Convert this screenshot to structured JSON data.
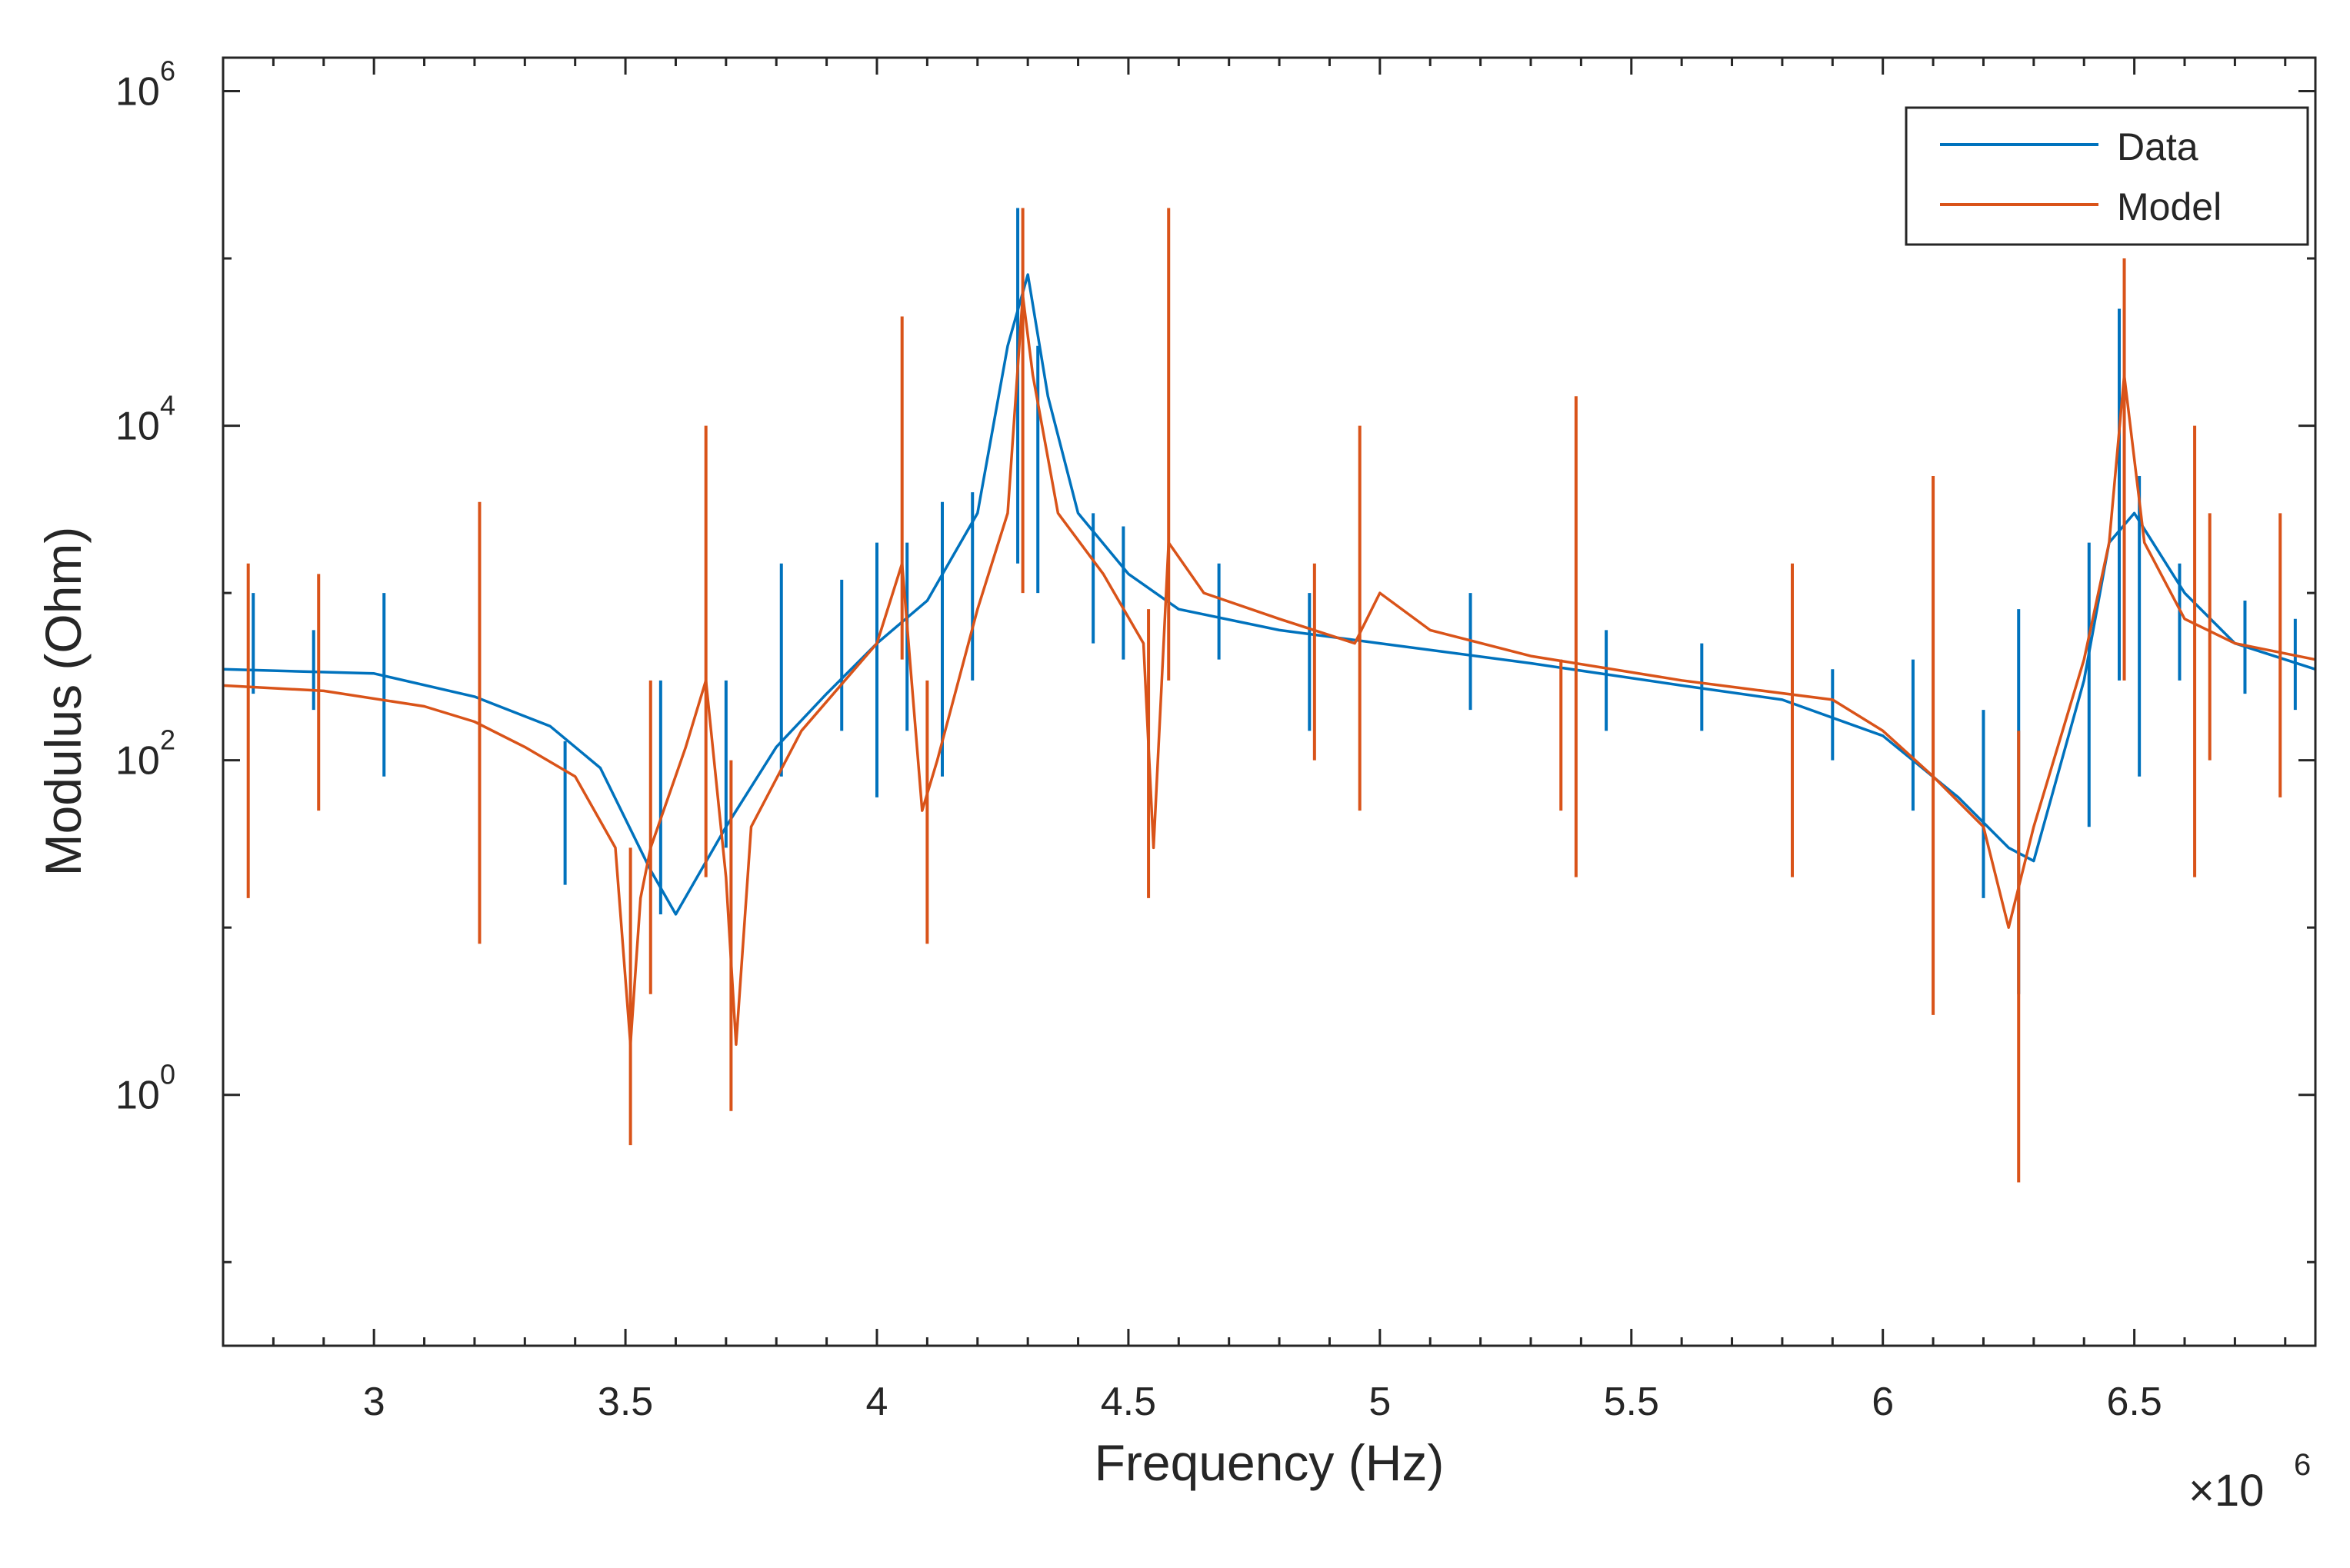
{
  "chart_data": {
    "type": "line",
    "title": "",
    "xlabel": "Frequency (Hz)",
    "ylabel": "Modulus (Ohm)",
    "x_scale": "linear",
    "y_scale": "log",
    "x_multiplier_base": "×10",
    "x_multiplier_exp": "6",
    "xlim": [
      2.7,
      6.86
    ],
    "ylim_log10": [
      -1.5,
      6.2
    ],
    "xticks": [
      {
        "value": 3.0,
        "label": "3"
      },
      {
        "value": 3.5,
        "label": "3.5"
      },
      {
        "value": 4.0,
        "label": "4"
      },
      {
        "value": 4.5,
        "label": "4.5"
      },
      {
        "value": 5.0,
        "label": "5"
      },
      {
        "value": 5.5,
        "label": "5.5"
      },
      {
        "value": 6.0,
        "label": "6"
      },
      {
        "value": 6.5,
        "label": "6.5"
      }
    ],
    "yticks": [
      {
        "exp": 0,
        "base": "10",
        "sup": "0"
      },
      {
        "exp": 2,
        "base": "10",
        "sup": "2"
      },
      {
        "exp": 4,
        "base": "10",
        "sup": "4"
      },
      {
        "exp": 6,
        "base": "10",
        "sup": "6"
      }
    ],
    "legend": {
      "location": "top-right",
      "entries": [
        "Data",
        "Model"
      ]
    },
    "series": [
      {
        "name": "Data",
        "color": "#0072BD",
        "baseline": [
          [
            2.7,
            350
          ],
          [
            3.0,
            330
          ],
          [
            3.2,
            240
          ],
          [
            3.35,
            160
          ],
          [
            3.45,
            90
          ],
          [
            3.55,
            22
          ],
          [
            3.6,
            12
          ],
          [
            3.7,
            40
          ],
          [
            3.8,
            120
          ],
          [
            3.9,
            250
          ],
          [
            4.0,
            500
          ],
          [
            4.1,
            900
          ],
          [
            4.2,
            3000
          ],
          [
            4.26,
            30000
          ],
          [
            4.3,
            80000
          ],
          [
            4.34,
            15000
          ],
          [
            4.4,
            3000
          ],
          [
            4.5,
            1300
          ],
          [
            4.6,
            800
          ],
          [
            4.8,
            600
          ],
          [
            5.0,
            500
          ],
          [
            5.3,
            380
          ],
          [
            5.6,
            280
          ],
          [
            5.8,
            230
          ],
          [
            6.0,
            140
          ],
          [
            6.15,
            60
          ],
          [
            6.25,
            30
          ],
          [
            6.3,
            25
          ],
          [
            6.4,
            300
          ],
          [
            6.45,
            2000
          ],
          [
            6.5,
            3000
          ],
          [
            6.6,
            1000
          ],
          [
            6.7,
            500
          ],
          [
            6.86,
            350
          ]
        ],
        "spikes": [
          {
            "f": 2.76,
            "lo": 250,
            "hi": 1000
          },
          {
            "f": 2.88,
            "lo": 200,
            "hi": 600
          },
          {
            "f": 3.02,
            "lo": 80,
            "hi": 1000
          },
          {
            "f": 3.38,
            "lo": 18,
            "hi": 130
          },
          {
            "f": 3.57,
            "lo": 12,
            "hi": 300
          },
          {
            "f": 3.7,
            "lo": 30,
            "hi": 300
          },
          {
            "f": 3.81,
            "lo": 80,
            "hi": 1500
          },
          {
            "f": 3.93,
            "lo": 150,
            "hi": 1200
          },
          {
            "f": 4.0,
            "lo": 60,
            "hi": 2000
          },
          {
            "f": 4.06,
            "lo": 150,
            "hi": 2000
          },
          {
            "f": 4.13,
            "lo": 80,
            "hi": 3500
          },
          {
            "f": 4.19,
            "lo": 300,
            "hi": 4000
          },
          {
            "f": 4.28,
            "lo": 1500,
            "hi": 200000
          },
          {
            "f": 4.32,
            "lo": 1000,
            "hi": 30000
          },
          {
            "f": 4.43,
            "lo": 500,
            "hi": 3000
          },
          {
            "f": 4.49,
            "lo": 400,
            "hi": 2500
          },
          {
            "f": 4.68,
            "lo": 400,
            "hi": 1500
          },
          {
            "f": 4.86,
            "lo": 150,
            "hi": 1000
          },
          {
            "f": 5.18,
            "lo": 200,
            "hi": 1000
          },
          {
            "f": 5.45,
            "lo": 150,
            "hi": 600
          },
          {
            "f": 5.64,
            "lo": 150,
            "hi": 500
          },
          {
            "f": 5.9,
            "lo": 100,
            "hi": 350
          },
          {
            "f": 6.06,
            "lo": 50,
            "hi": 400
          },
          {
            "f": 6.2,
            "lo": 15,
            "hi": 200
          },
          {
            "f": 6.27,
            "lo": 4,
            "hi": 800
          },
          {
            "f": 6.41,
            "lo": 40,
            "hi": 2000
          },
          {
            "f": 6.47,
            "lo": 300,
            "hi": 50000
          },
          {
            "f": 6.51,
            "lo": 80,
            "hi": 5000
          },
          {
            "f": 6.59,
            "lo": 300,
            "hi": 1500
          },
          {
            "f": 6.72,
            "lo": 250,
            "hi": 900
          },
          {
            "f": 6.82,
            "lo": 200,
            "hi": 700
          }
        ]
      },
      {
        "name": "Model",
        "color": "#D95319",
        "baseline": [
          [
            2.7,
            280
          ],
          [
            2.9,
            260
          ],
          [
            3.1,
            210
          ],
          [
            3.2,
            170
          ],
          [
            3.3,
            120
          ],
          [
            3.4,
            80
          ],
          [
            3.48,
            30
          ],
          [
            3.51,
            2
          ],
          [
            3.53,
            15
          ],
          [
            3.55,
            30
          ],
          [
            3.62,
            120
          ],
          [
            3.66,
            300
          ],
          [
            3.7,
            20
          ],
          [
            3.72,
            2
          ],
          [
            3.75,
            40
          ],
          [
            3.85,
            150
          ],
          [
            4.0,
            500
          ],
          [
            4.05,
            1500
          ],
          [
            4.09,
            50
          ],
          [
            4.12,
            100
          ],
          [
            4.2,
            800
          ],
          [
            4.26,
            3000
          ],
          [
            4.29,
            60000
          ],
          [
            4.31,
            20000
          ],
          [
            4.36,
            3000
          ],
          [
            4.45,
            1300
          ],
          [
            4.53,
            500
          ],
          [
            4.55,
            30
          ],
          [
            4.58,
            2000
          ],
          [
            4.65,
            1000
          ],
          [
            4.8,
            700
          ],
          [
            4.95,
            500
          ],
          [
            5.0,
            1000
          ],
          [
            5.1,
            600
          ],
          [
            5.3,
            420
          ],
          [
            5.6,
            300
          ],
          [
            5.9,
            230
          ],
          [
            6.0,
            150
          ],
          [
            6.1,
            80
          ],
          [
            6.2,
            40
          ],
          [
            6.25,
            10
          ],
          [
            6.3,
            40
          ],
          [
            6.4,
            400
          ],
          [
            6.45,
            2000
          ],
          [
            6.48,
            20000
          ],
          [
            6.52,
            2000
          ],
          [
            6.6,
            700
          ],
          [
            6.7,
            500
          ],
          [
            6.86,
            400
          ]
        ],
        "spikes": [
          {
            "f": 2.75,
            "lo": 15,
            "hi": 1500
          },
          {
            "f": 2.89,
            "lo": 50,
            "hi": 1300
          },
          {
            "f": 3.21,
            "lo": 8,
            "hi": 3500
          },
          {
            "f": 3.51,
            "lo": 0.5,
            "hi": 30
          },
          {
            "f": 3.55,
            "lo": 4,
            "hi": 300
          },
          {
            "f": 3.66,
            "lo": 20,
            "hi": 10000
          },
          {
            "f": 3.71,
            "lo": 0.8,
            "hi": 100
          },
          {
            "f": 4.05,
            "lo": 400,
            "hi": 45000
          },
          {
            "f": 4.1,
            "lo": 8,
            "hi": 300
          },
          {
            "f": 4.29,
            "lo": 1000,
            "hi": 200000
          },
          {
            "f": 4.54,
            "lo": 15,
            "hi": 800
          },
          {
            "f": 4.58,
            "lo": 300,
            "hi": 200000
          },
          {
            "f": 4.87,
            "lo": 100,
            "hi": 1500
          },
          {
            "f": 4.96,
            "lo": 50,
            "hi": 10000
          },
          {
            "f": 5.36,
            "lo": 50,
            "hi": 400
          },
          {
            "f": 5.39,
            "lo": 20,
            "hi": 15000
          },
          {
            "f": 5.82,
            "lo": 20,
            "hi": 1500
          },
          {
            "f": 6.1,
            "lo": 3,
            "hi": 5000
          },
          {
            "f": 6.27,
            "lo": 0.3,
            "hi": 150
          },
          {
            "f": 6.48,
            "lo": 300,
            "hi": 100000
          },
          {
            "f": 6.62,
            "lo": 20,
            "hi": 10000
          },
          {
            "f": 6.65,
            "lo": 100,
            "hi": 3000
          },
          {
            "f": 6.79,
            "lo": 60,
            "hi": 3000
          }
        ]
      }
    ]
  }
}
